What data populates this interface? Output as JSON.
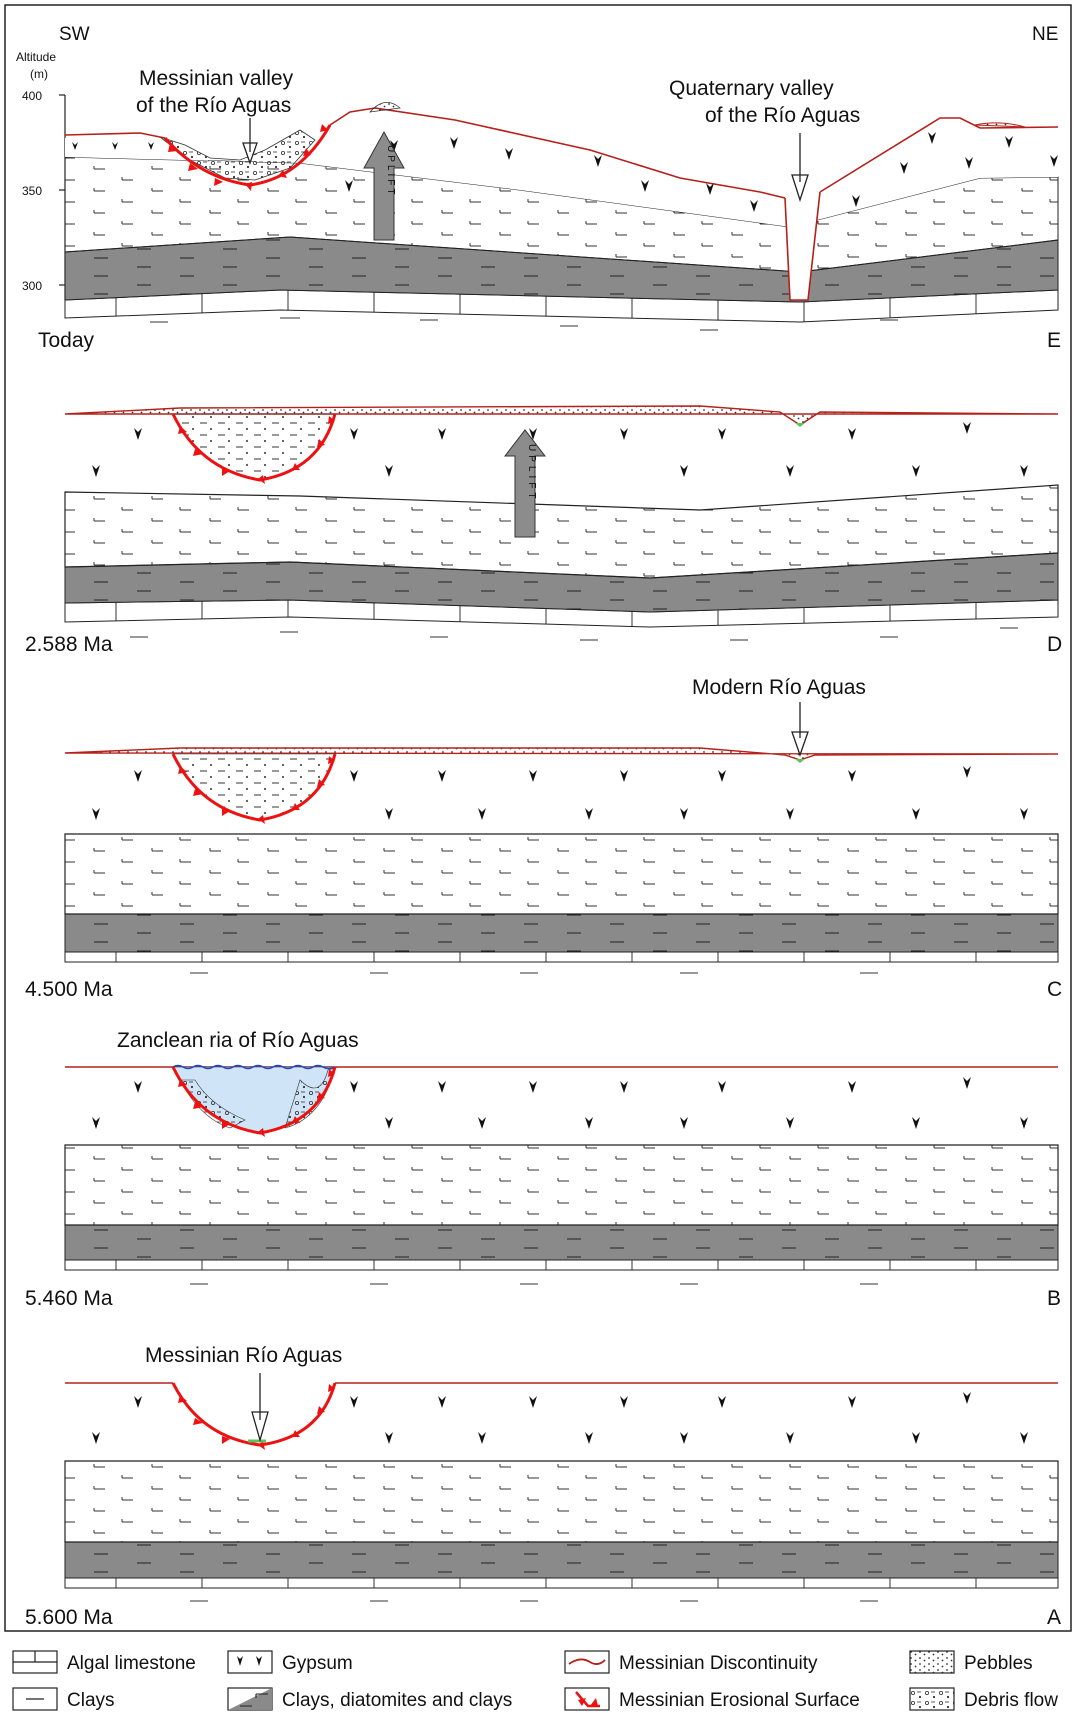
{
  "directions": {
    "left": "SW",
    "right": "NE"
  },
  "axis": {
    "label_line1": "Altitude",
    "label_line2": "(m)",
    "ticks": [
      "400",
      "350",
      "300"
    ]
  },
  "panels": [
    {
      "id": "E",
      "time": "Today",
      "letter": "E"
    },
    {
      "id": "D",
      "time": "2.588 Ma",
      "letter": "D"
    },
    {
      "id": "C",
      "time": "4.500 Ma",
      "letter": "C"
    },
    {
      "id": "B",
      "time": "5.460 Ma",
      "letter": "B"
    },
    {
      "id": "A",
      "time": "5.600 Ma",
      "letter": "A"
    }
  ],
  "annotations": {
    "messinian_valley_line1": "Messinian valley",
    "messinian_valley_line2": "of the Río Aguas",
    "quaternary_valley_line1": "Quaternary valley",
    "quaternary_valley_line2": "of the Río Aguas",
    "modern_rio_aguas": "Modern Río Aguas",
    "zanclean_ria": "Zanclean ria of Río Aguas",
    "messinian_rio_aguas": "Messinian Río Aguas",
    "uplift": "UPLIFT"
  },
  "legend": {
    "algal_limestone": "Algal limestone",
    "gypsum": "Gypsum",
    "messinian_discontinuity": "Messinian Discontinuity",
    "pebbles": "Pebbles",
    "clays": "Clays",
    "clays_diatomites": "Clays, diatomites and clays",
    "messinian_erosional_surface": "Messinian Erosional Surface",
    "debris_flow": "Debris flow"
  },
  "colors": {
    "discontinuity": "#b5201a",
    "erosional_surface": "#ee1111",
    "clays_diatomites_fill": "#8a8a8a",
    "ria_water": "#cfe4f7",
    "river_green": "#5cc25c",
    "uplift_arrow": "#8c8c8c"
  }
}
